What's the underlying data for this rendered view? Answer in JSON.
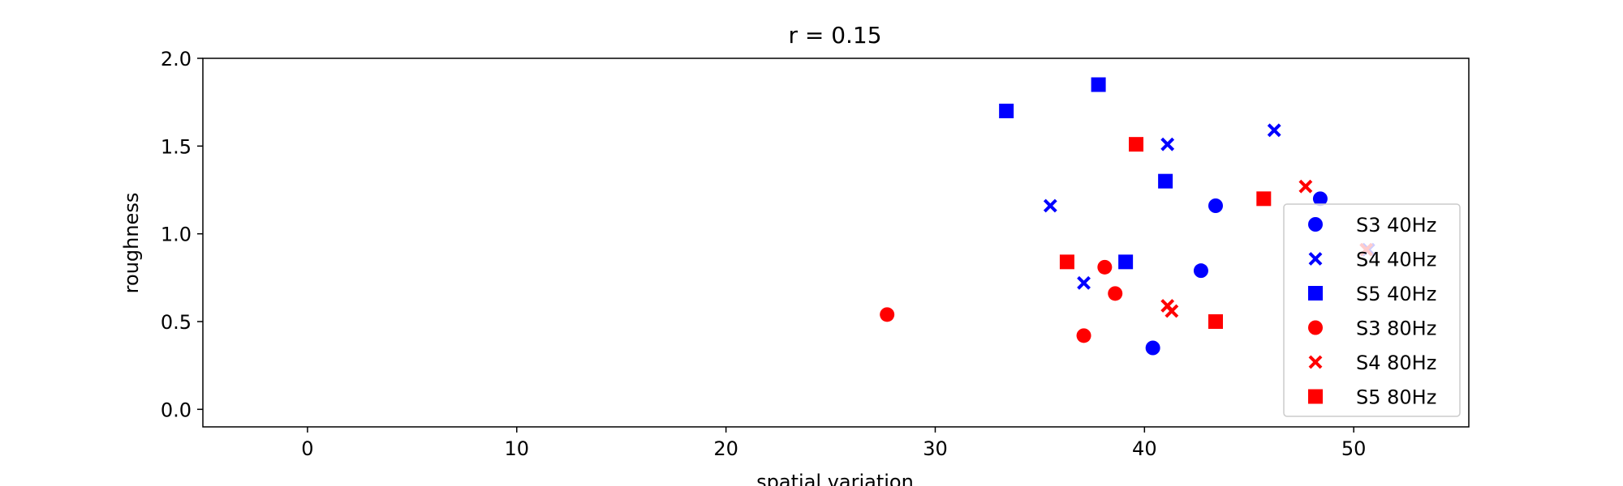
{
  "chart_data": {
    "type": "scatter",
    "title": "r = 0.15",
    "xlabel": "spatial variation",
    "ylabel": "roughness",
    "xlim": [
      -5,
      55.5
    ],
    "ylim": [
      -0.1,
      2.0
    ],
    "xticks": [
      0,
      10,
      20,
      30,
      40,
      50
    ],
    "yticks": [
      0.0,
      0.5,
      1.0,
      1.5,
      2.0
    ],
    "grid": false,
    "legend_position": "lower-right",
    "series": [
      {
        "name": "S3 40Hz",
        "color": "#0000ff",
        "marker": "circle",
        "points": [
          [
            40.4,
            0.35
          ],
          [
            42.7,
            0.79
          ],
          [
            43.4,
            1.16
          ],
          [
            48.4,
            1.2
          ]
        ]
      },
      {
        "name": "S4 40Hz",
        "color": "#0000ff",
        "marker": "x",
        "points": [
          [
            35.5,
            1.16
          ],
          [
            37.1,
            0.72
          ],
          [
            41.1,
            1.51
          ],
          [
            46.2,
            1.59
          ],
          [
            50.7,
            0.91
          ]
        ]
      },
      {
        "name": "S5 40Hz",
        "color": "#0000ff",
        "marker": "square",
        "points": [
          [
            33.4,
            1.7
          ],
          [
            37.8,
            1.85
          ],
          [
            39.1,
            0.84
          ],
          [
            41.0,
            1.3
          ]
        ]
      },
      {
        "name": "S3 80Hz",
        "color": "#ff0000",
        "marker": "circle",
        "points": [
          [
            27.7,
            0.54
          ],
          [
            37.1,
            0.42
          ],
          [
            38.1,
            0.81
          ],
          [
            38.6,
            0.66
          ]
        ]
      },
      {
        "name": "S4 80Hz",
        "color": "#ff0000",
        "marker": "x",
        "points": [
          [
            41.1,
            0.59
          ],
          [
            41.3,
            0.56
          ],
          [
            47.7,
            1.27
          ],
          [
            50.6,
            0.91
          ]
        ]
      },
      {
        "name": "S5 80Hz",
        "color": "#ff0000",
        "marker": "square",
        "points": [
          [
            36.3,
            0.84
          ],
          [
            39.6,
            1.51
          ],
          [
            43.4,
            0.5
          ],
          [
            45.7,
            1.2
          ]
        ]
      }
    ]
  }
}
